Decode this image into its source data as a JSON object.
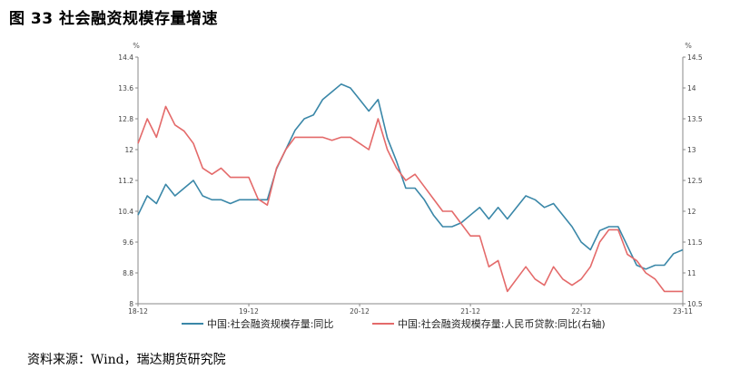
{
  "figure": {
    "title": "图 33 社会融资规模存量增速",
    "source": "资料来源：Wind，瑞达期货研究院"
  },
  "colors": {
    "series1": "#3a87a8",
    "series2": "#e46a6a",
    "axis": "#888888"
  },
  "chart_data": {
    "type": "line",
    "title": "图 33 社会融资规模存量增速",
    "left_unit": "%",
    "right_unit": "%",
    "x_ticks": [
      "18-12",
      "19-12",
      "20-12",
      "21-12",
      "22-12",
      "23-11"
    ],
    "y_left": {
      "min": 8,
      "max": 14.4,
      "ticks": [
        "8",
        "8.8",
        "9.6",
        "10.4",
        "11.2",
        "12",
        "12.8",
        "13.6",
        "14.4"
      ]
    },
    "y_right": {
      "min": 10.5,
      "max": 14.5,
      "ticks": [
        "10.5",
        "11",
        "11.5",
        "12",
        "12.5",
        "13",
        "13.5",
        "14",
        "14.5"
      ]
    },
    "legend_position": "bottom",
    "grid": false,
    "series": [
      {
        "name": "中国:社会融资规模存量:同比",
        "axis": "left",
        "x": [
          "2018-12",
          "2019-01",
          "2019-02",
          "2019-03",
          "2019-04",
          "2019-05",
          "2019-06",
          "2019-07",
          "2019-08",
          "2019-09",
          "2019-10",
          "2019-11",
          "2019-12",
          "2020-01",
          "2020-02",
          "2020-03",
          "2020-04",
          "2020-05",
          "2020-06",
          "2020-07",
          "2020-08",
          "2020-09",
          "2020-10",
          "2020-11",
          "2020-12",
          "2021-01",
          "2021-02",
          "2021-03",
          "2021-04",
          "2021-05",
          "2021-06",
          "2021-07",
          "2021-08",
          "2021-09",
          "2021-10",
          "2021-11",
          "2021-12",
          "2022-01",
          "2022-02",
          "2022-03",
          "2022-04",
          "2022-05",
          "2022-06",
          "2022-07",
          "2022-08",
          "2022-09",
          "2022-10",
          "2022-11",
          "2022-12",
          "2023-01",
          "2023-02",
          "2023-03",
          "2023-04",
          "2023-05",
          "2023-06",
          "2023-07",
          "2023-08",
          "2023-09",
          "2023-10",
          "2023-11"
        ],
        "values": [
          10.3,
          10.8,
          10.6,
          11.1,
          10.8,
          11.0,
          11.2,
          10.8,
          10.7,
          10.7,
          10.6,
          10.7,
          10.7,
          10.7,
          10.7,
          11.5,
          12.0,
          12.5,
          12.8,
          12.9,
          13.3,
          13.5,
          13.7,
          13.6,
          13.3,
          13.0,
          13.3,
          12.3,
          11.7,
          11.0,
          11.0,
          10.7,
          10.3,
          10.0,
          10.0,
          10.1,
          10.3,
          10.5,
          10.2,
          10.5,
          10.2,
          10.5,
          10.8,
          10.7,
          10.5,
          10.6,
          10.3,
          10.0,
          9.6,
          9.4,
          9.9,
          10.0,
          10.0,
          9.5,
          9.0,
          8.9,
          9.0,
          9.0,
          9.3,
          9.4
        ]
      },
      {
        "name": "中国:社会融资规模存量:人民币贷款:同比(右轴)",
        "axis": "right",
        "x": [
          "2018-12",
          "2019-01",
          "2019-02",
          "2019-03",
          "2019-04",
          "2019-05",
          "2019-06",
          "2019-07",
          "2019-08",
          "2019-09",
          "2019-10",
          "2019-11",
          "2019-12",
          "2020-01",
          "2020-02",
          "2020-03",
          "2020-04",
          "2020-05",
          "2020-06",
          "2020-07",
          "2020-08",
          "2020-09",
          "2020-10",
          "2020-11",
          "2020-12",
          "2021-01",
          "2021-02",
          "2021-03",
          "2021-04",
          "2021-05",
          "2021-06",
          "2021-07",
          "2021-08",
          "2021-09",
          "2021-10",
          "2021-11",
          "2021-12",
          "2022-01",
          "2022-02",
          "2022-03",
          "2022-04",
          "2022-05",
          "2022-06",
          "2022-07",
          "2022-08",
          "2022-09",
          "2022-10",
          "2022-11",
          "2022-12",
          "2023-01",
          "2023-02",
          "2023-03",
          "2023-04",
          "2023-05",
          "2023-06",
          "2023-07",
          "2023-08",
          "2023-09",
          "2023-10",
          "2023-11"
        ],
        "values": [
          13.1,
          13.5,
          13.2,
          13.7,
          13.4,
          13.3,
          13.1,
          12.7,
          12.6,
          12.7,
          12.55,
          12.55,
          12.55,
          12.2,
          12.1,
          12.7,
          13.0,
          13.2,
          13.2,
          13.2,
          13.2,
          13.15,
          13.2,
          13.2,
          13.1,
          13.0,
          13.5,
          13.0,
          12.7,
          12.5,
          12.6,
          12.4,
          12.2,
          12.0,
          12.0,
          11.8,
          11.6,
          11.6,
          11.1,
          11.2,
          10.7,
          10.9,
          11.1,
          10.9,
          10.8,
          11.1,
          10.9,
          10.8,
          10.9,
          11.1,
          11.5,
          11.7,
          11.7,
          11.3,
          11.2,
          11.0,
          10.9,
          10.7,
          10.7,
          10.7
        ]
      }
    ]
  }
}
